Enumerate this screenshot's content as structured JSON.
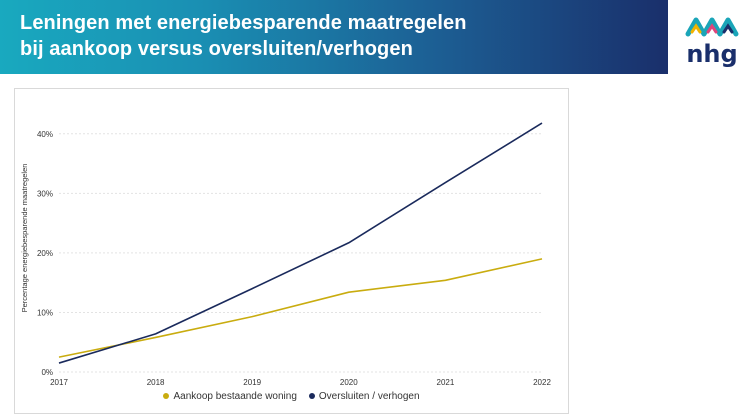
{
  "header": {
    "title_line1": "Leningen met energiebesparende maatregelen",
    "title_line2": "bij aankoop versus oversluiten/verhogen"
  },
  "logo": {
    "text": "nhg",
    "icon": "nhg-wave-logo"
  },
  "colors": {
    "series_aankoop": "#c9ac0f",
    "series_oversluiten": "#1a2a5c",
    "grid": "#e3e3e3",
    "axis_text": "#333333"
  },
  "chart_data": {
    "type": "line",
    "x": [
      "2017",
      "2018",
      "2019",
      "2020",
      "2021",
      "2022"
    ],
    "series": [
      {
        "name": "Aankoop bestaande woning",
        "values": [
          2.5,
          5.8,
          9.3,
          13.4,
          15.4,
          19.0
        ]
      },
      {
        "name": "Oversluiten / verhogen",
        "values": [
          1.5,
          6.4,
          14.0,
          21.7,
          31.8,
          41.8
        ]
      }
    ],
    "ylabel": "Percentage energiebesparende maatregelen",
    "xlabel": "",
    "ylim": [
      0,
      45
    ],
    "yticks": [
      0,
      10,
      20,
      30,
      40
    ],
    "ytick_labels": [
      "0%",
      "10%",
      "20%",
      "30%",
      "40%"
    ],
    "grid": "horizontal-dotted",
    "legend": "bottom-center"
  }
}
